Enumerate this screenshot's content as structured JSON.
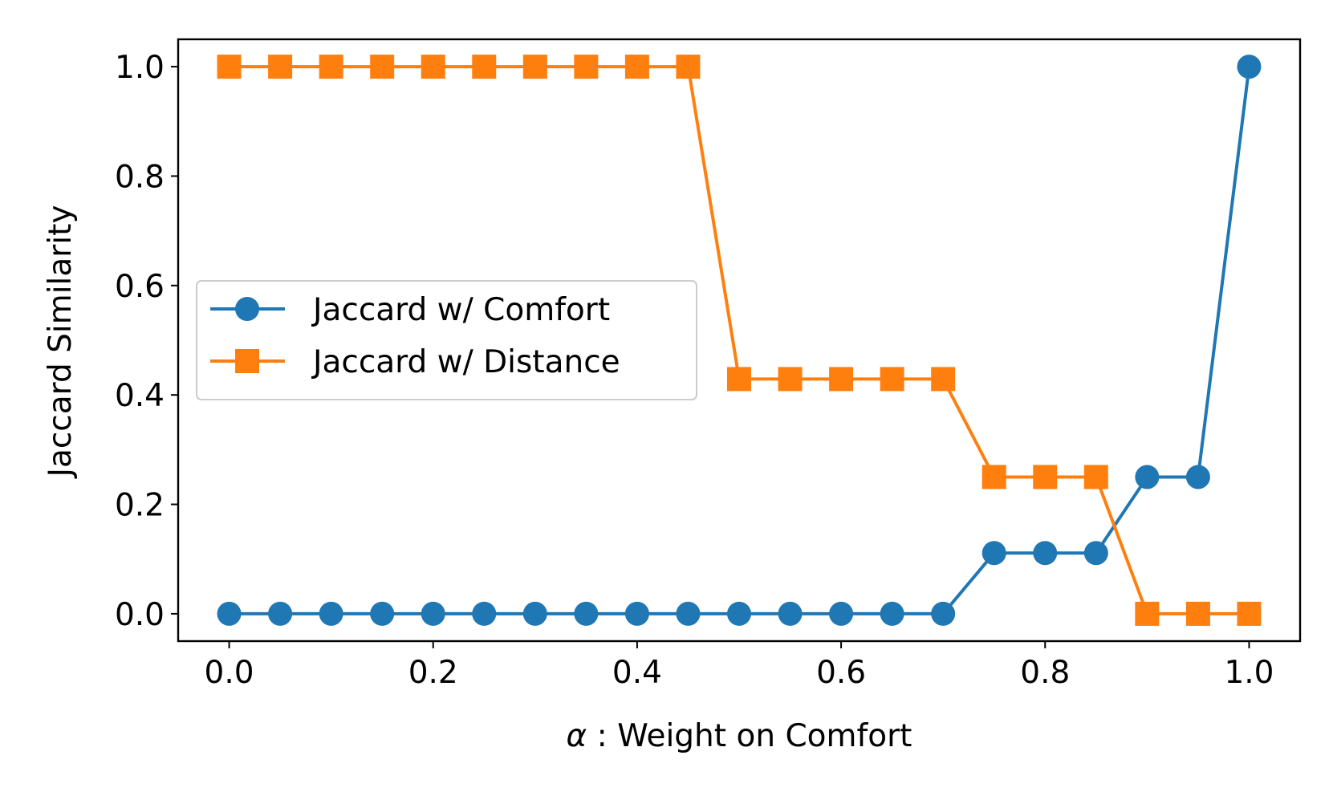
{
  "chart_data": {
    "type": "line",
    "xlabel_symbol": "α",
    "xlabel_text": " : Weight on Comfort",
    "ylabel": "Jaccard Similarity",
    "xlim": [
      -0.05,
      1.05
    ],
    "ylim": [
      -0.05,
      1.05
    ],
    "x_ticks": [
      {
        "value": 0.0,
        "label": "0.0"
      },
      {
        "value": 0.2,
        "label": "0.2"
      },
      {
        "value": 0.4,
        "label": "0.4"
      },
      {
        "value": 0.6,
        "label": "0.6"
      },
      {
        "value": 0.8,
        "label": "0.8"
      },
      {
        "value": 1.0,
        "label": "1.0"
      }
    ],
    "y_ticks": [
      {
        "value": 0.0,
        "label": "0.0"
      },
      {
        "value": 0.2,
        "label": "0.2"
      },
      {
        "value": 0.4,
        "label": "0.4"
      },
      {
        "value": 0.6,
        "label": "0.6"
      },
      {
        "value": 0.8,
        "label": "0.8"
      },
      {
        "value": 1.0,
        "label": "1.0"
      }
    ],
    "grid": false,
    "legend_position": "center-left",
    "x": [
      0.0,
      0.05,
      0.1,
      0.15,
      0.2,
      0.25,
      0.3,
      0.35,
      0.4,
      0.45,
      0.5,
      0.55,
      0.6,
      0.65,
      0.7,
      0.75,
      0.8,
      0.85,
      0.9,
      0.95,
      1.0
    ],
    "series": [
      {
        "name": "Jaccard w/ Comfort",
        "color": "#1f77b4",
        "marker": "circle",
        "values": [
          0,
          0,
          0,
          0,
          0,
          0,
          0,
          0,
          0,
          0,
          0,
          0,
          0,
          0,
          0,
          0.111,
          0.111,
          0.111,
          0.25,
          0.25,
          1.0
        ]
      },
      {
        "name": "Jaccard w/ Distance",
        "color": "#ff7f0e",
        "marker": "square",
        "values": [
          1.0,
          1.0,
          1.0,
          1.0,
          1.0,
          1.0,
          1.0,
          1.0,
          1.0,
          1.0,
          0.429,
          0.429,
          0.429,
          0.429,
          0.429,
          0.25,
          0.25,
          0.25,
          0,
          0,
          0
        ]
      }
    ]
  }
}
